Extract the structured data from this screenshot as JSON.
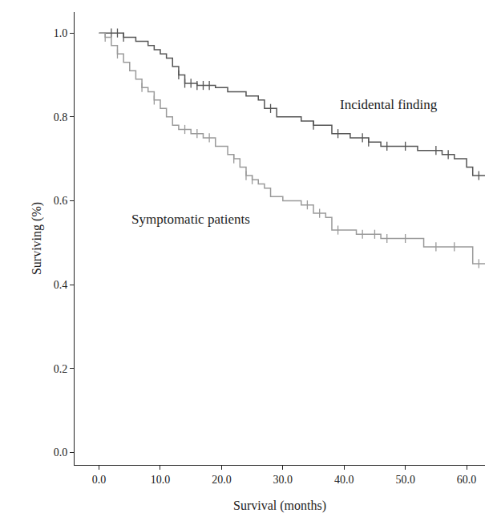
{
  "chart_data": {
    "type": "line",
    "x_label": "Survival (months)",
    "y_label": "Surviving (%)",
    "xlim": [
      -4,
      63
    ],
    "ylim": [
      -0.03,
      1.05
    ],
    "xticks": [
      {
        "value": 0,
        "label": "0.0"
      },
      {
        "value": 10,
        "label": "10.0"
      },
      {
        "value": 20,
        "label": "20.0"
      },
      {
        "value": 30,
        "label": "30.0"
      },
      {
        "value": 40,
        "label": "40.0"
      },
      {
        "value": 50,
        "label": "50.0"
      },
      {
        "value": 60,
        "label": "60.0"
      }
    ],
    "yticks": [
      {
        "value": 0,
        "label": "0.0"
      },
      0.2,
      0.4,
      0.6,
      0.8,
      {
        "value": 1,
        "label": "1.0"
      }
    ],
    "grid": false,
    "legend": false,
    "line_style": "step",
    "series": [
      {
        "name": "Incidental finding",
        "color": "#555555",
        "x": [
          0,
          4,
          6,
          8,
          9,
          10,
          11,
          12,
          13,
          14,
          16,
          19,
          21,
          24,
          26,
          27,
          29,
          33,
          35,
          38,
          41,
          44,
          46,
          50,
          52,
          56,
          58,
          60,
          61,
          63
        ],
        "values": [
          1.0,
          0.99,
          0.98,
          0.97,
          0.96,
          0.95,
          0.94,
          0.92,
          0.9,
          0.88,
          0.875,
          0.87,
          0.86,
          0.85,
          0.84,
          0.82,
          0.8,
          0.79,
          0.78,
          0.76,
          0.75,
          0.74,
          0.73,
          0.73,
          0.72,
          0.71,
          0.7,
          0.68,
          0.66,
          0.66
        ],
        "censored_x": [
          2,
          3,
          4,
          13,
          14,
          15,
          16,
          17,
          18,
          28,
          35,
          39,
          43,
          44,
          47,
          50,
          55,
          57,
          62
        ],
        "censored_values": [
          1.0,
          1.0,
          0.99,
          0.9,
          0.88,
          0.88,
          0.875,
          0.875,
          0.875,
          0.82,
          0.78,
          0.76,
          0.75,
          0.74,
          0.73,
          0.73,
          0.72,
          0.71,
          0.66
        ]
      },
      {
        "name": "Symptomatic patients",
        "color": "#9a9a9a",
        "x": [
          0,
          1,
          2,
          3,
          4,
          5,
          6,
          7,
          8,
          9,
          10,
          11,
          12,
          13,
          15,
          17,
          19,
          21,
          22,
          23,
          24,
          25,
          26,
          27,
          28,
          30,
          33,
          35,
          37,
          38,
          42,
          46,
          53,
          61,
          63
        ],
        "values": [
          1.0,
          0.99,
          0.97,
          0.95,
          0.93,
          0.91,
          0.89,
          0.87,
          0.86,
          0.84,
          0.82,
          0.8,
          0.78,
          0.77,
          0.76,
          0.75,
          0.73,
          0.71,
          0.7,
          0.68,
          0.66,
          0.65,
          0.64,
          0.63,
          0.61,
          0.6,
          0.59,
          0.57,
          0.56,
          0.53,
          0.52,
          0.51,
          0.49,
          0.45,
          0.45
        ],
        "censored_x": [
          1,
          3,
          7,
          9,
          14,
          16,
          18,
          22,
          24,
          25,
          34,
          36,
          39,
          43,
          45,
          47,
          50,
          55,
          58,
          62
        ],
        "censored_values": [
          0.99,
          0.95,
          0.87,
          0.84,
          0.77,
          0.76,
          0.75,
          0.7,
          0.66,
          0.65,
          0.59,
          0.57,
          0.53,
          0.52,
          0.52,
          0.51,
          0.51,
          0.49,
          0.49,
          0.45
        ]
      }
    ]
  }
}
